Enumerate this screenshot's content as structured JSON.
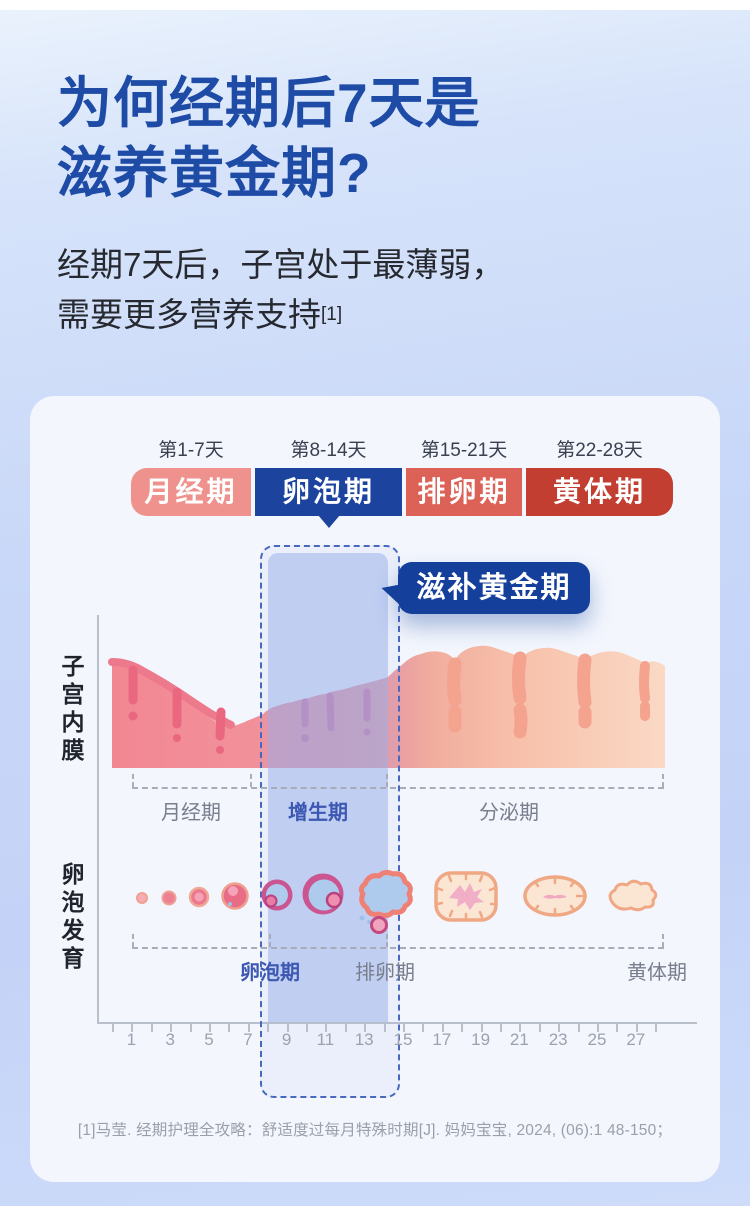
{
  "page": {
    "title_line1": "为何经期后7天是",
    "title_line2": "滋养黄金期?",
    "subtitle_line1": "经期7天后，子宫处于最薄弱，",
    "subtitle_line2": "需要更多营养支持",
    "subtitle_ref": "[1]",
    "footnote": "[1]马莹. 经期护理全攻略：舒适度过每月特殊时期[J]. 妈妈宝宝, 2024, (06):1 48-150；"
  },
  "colors": {
    "title_blue": "#1D4BA6",
    "panel_bg": "#F3F6FD",
    "highlight_band": "#96ADE9",
    "highlight_border": "#4868BF",
    "callout_bg": "#143F9A",
    "axis_gray": "#BAC0CB"
  },
  "phase_bar": {
    "phases": [
      {
        "day_range": "第1-7天",
        "label": "月经期",
        "color": "#EF928D"
      },
      {
        "day_range": "第8-14天",
        "label": "卵泡期",
        "color": "#1C449E",
        "highlight": true
      },
      {
        "day_range": "第15-21天",
        "label": "排卵期",
        "color": "#DC6257"
      },
      {
        "day_range": "第22-28天",
        "label": "黄体期",
        "color": "#C13E31"
      }
    ]
  },
  "chart_data": {
    "type": "area",
    "x_axis": {
      "unit": "天",
      "range": [
        1,
        28
      ],
      "tick_labels": [
        "1",
        "3",
        "5",
        "7",
        "9",
        "11",
        "13",
        "15",
        "17",
        "19",
        "21",
        "23",
        "25",
        "27"
      ]
    },
    "highlight": {
      "label": "滋补黄金期",
      "days": [
        8,
        14
      ]
    },
    "endometrium_row": {
      "label": "子宫内膜",
      "phase_labels": [
        "月经期",
        "增生期",
        "分泌期"
      ],
      "phase_day_spans": [
        [
          1,
          7
        ],
        [
          8,
          14
        ],
        [
          15,
          28
        ]
      ],
      "thickness_profile_rel": [
        [
          1,
          0.82
        ],
        [
          3,
          0.7
        ],
        [
          5,
          0.52
        ],
        [
          7,
          0.38
        ],
        [
          8,
          0.42
        ],
        [
          10,
          0.52
        ],
        [
          12,
          0.6
        ],
        [
          14,
          0.7
        ],
        [
          16,
          0.84
        ],
        [
          18,
          0.9
        ],
        [
          20,
          0.92
        ],
        [
          22,
          0.93
        ],
        [
          24,
          0.91
        ],
        [
          26,
          0.88
        ],
        [
          28,
          0.84
        ]
      ]
    },
    "follicle_row": {
      "label": "卵泡发育",
      "phase_labels": [
        "卵泡期",
        "排卵期",
        "黄体期"
      ]
    }
  }
}
